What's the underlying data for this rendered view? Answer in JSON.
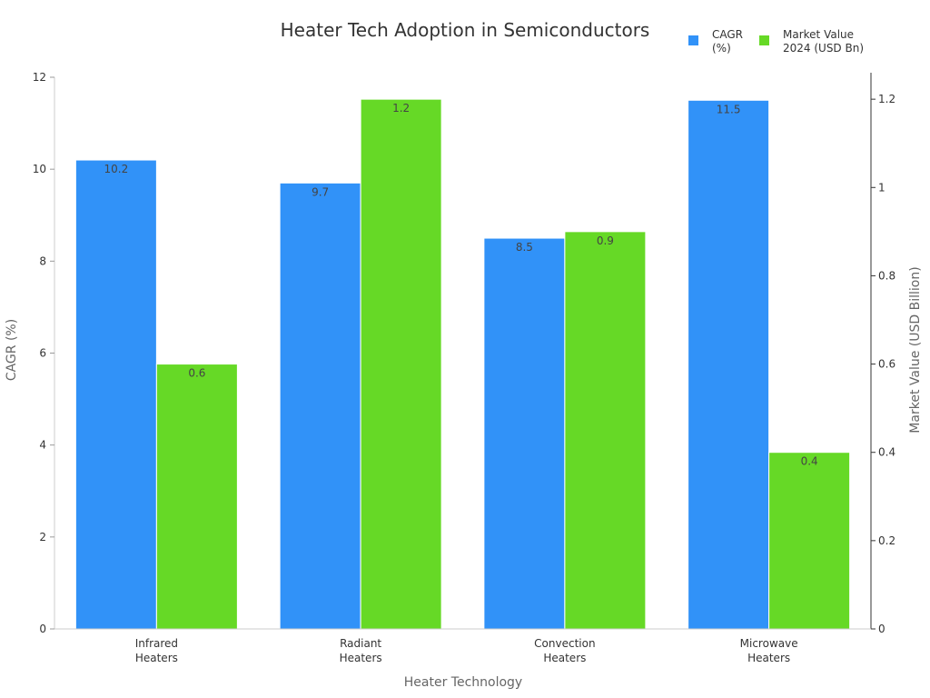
{
  "chart_data": {
    "type": "bar",
    "title": "Heater Tech Adoption in Semiconductors",
    "xlabel": "Heater Technology",
    "ylabel": "CAGR (%)",
    "y2label": "Market Value (USD Billion)",
    "categories": [
      [
        "Infrared",
        "Heaters"
      ],
      [
        "Radiant",
        "Heaters"
      ],
      [
        "Convection",
        "Heaters"
      ],
      [
        "Microwave",
        "Heaters"
      ]
    ],
    "series": [
      {
        "name": [
          "CAGR",
          "(%)"
        ],
        "axis": "left",
        "color": "#3192f8",
        "values": [
          10.2,
          9.7,
          8.5,
          11.5
        ],
        "labels": [
          "10.2",
          "9.7",
          "8.5",
          "11.5"
        ]
      },
      {
        "name": [
          "Market Value",
          "2024 (USD Bn)"
        ],
        "axis": "right",
        "color": "#66d926",
        "values": [
          0.6,
          1.2,
          0.9,
          0.4
        ],
        "labels": [
          "0.6",
          "1.2",
          "0.9",
          "0.4"
        ]
      }
    ],
    "ylim": [
      0,
      12
    ],
    "y2lim": [
      0,
      1.26
    ],
    "yticks": [
      0,
      2,
      4,
      6,
      8,
      10,
      12
    ],
    "ytick_labels": [
      "0",
      "2",
      "4",
      "6",
      "8",
      "10",
      "12"
    ],
    "y2ticks": [
      0,
      0.2,
      0.4,
      0.6,
      0.8,
      1,
      1.2
    ],
    "y2tick_labels": [
      "0",
      "0.2",
      "0.4",
      "0.6",
      "0.8",
      "1",
      "1.2"
    ],
    "legend_position": "top-right",
    "grid": false
  }
}
